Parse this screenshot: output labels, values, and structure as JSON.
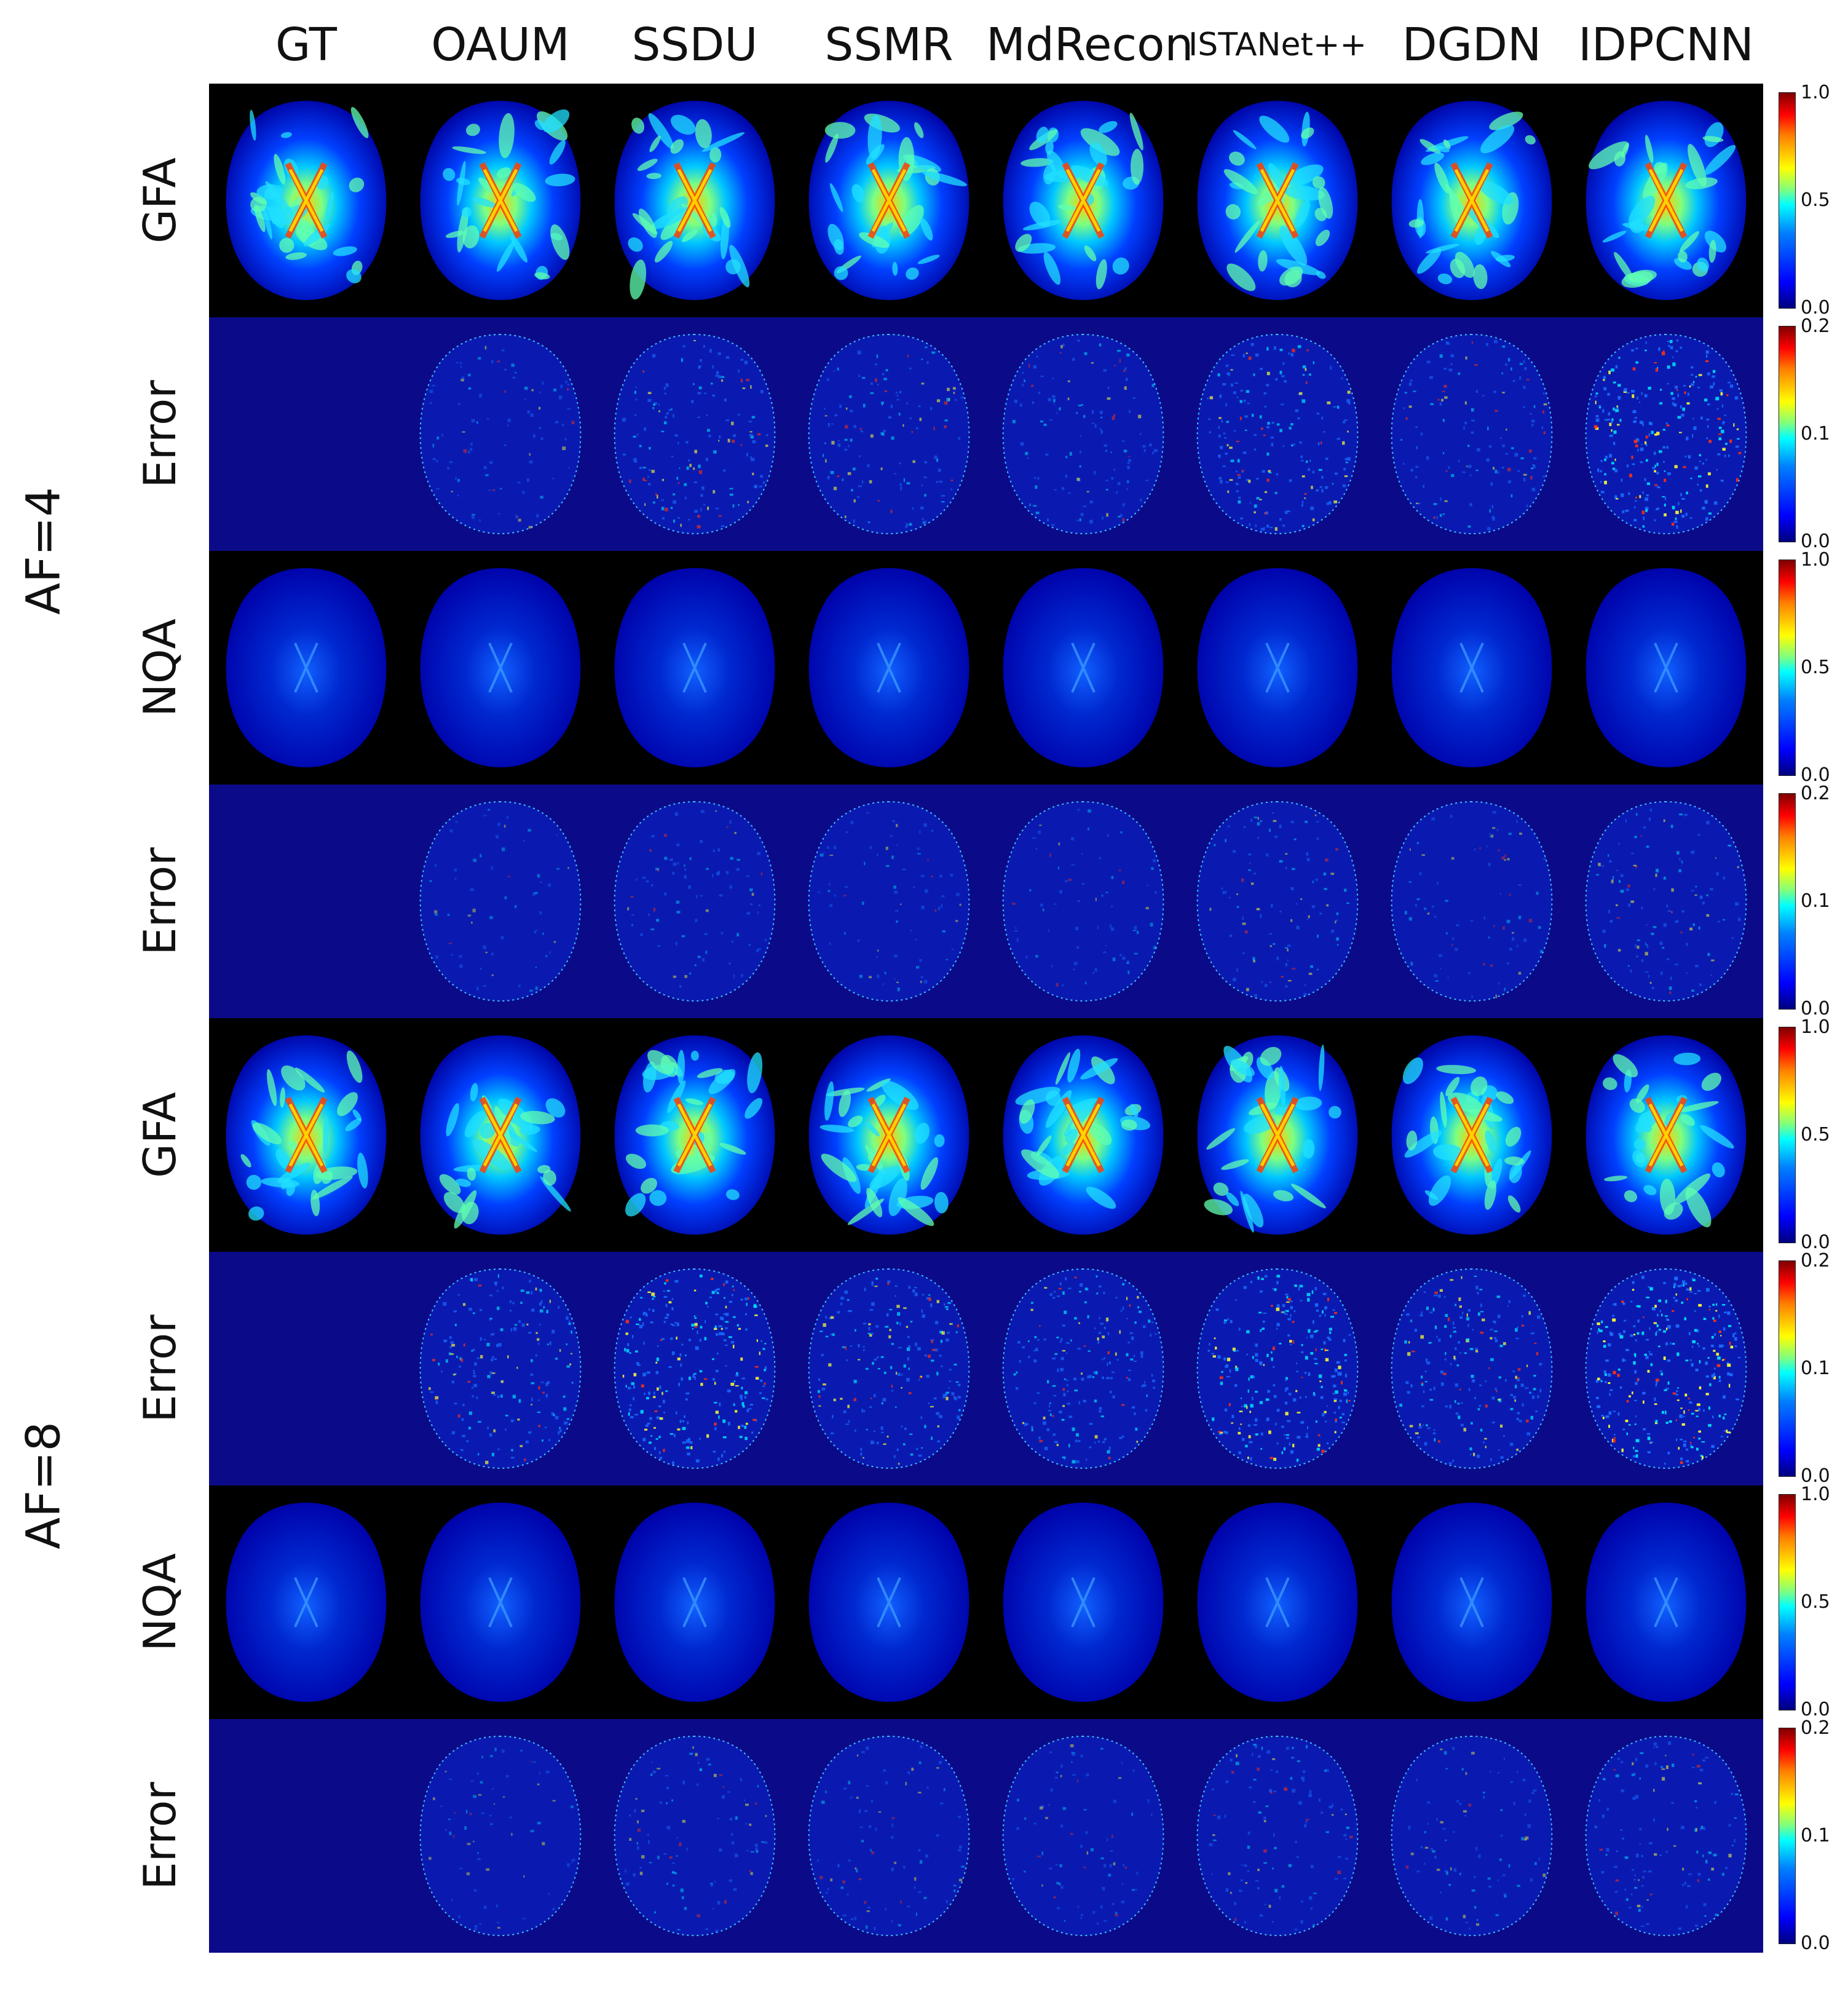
{
  "columns": [
    "GT",
    "OAUM",
    "SSDU",
    "SSMR",
    "MdRecon",
    "ISTANet++",
    "DGDN",
    "IDPCNN"
  ],
  "groups": [
    "AF=4",
    "AF=8"
  ],
  "rows": [
    {
      "label": "GFA",
      "kind": "map",
      "gt_empty": false,
      "errors": [
        0,
        0,
        0,
        0,
        0,
        0,
        0,
        0
      ]
    },
    {
      "label": "Error",
      "kind": "error",
      "gt_empty": true,
      "errors": [
        0,
        0.2,
        0.45,
        0.35,
        0.32,
        0.6,
        0.35,
        0.9
      ]
    },
    {
      "label": "NQA",
      "kind": "nqa",
      "gt_empty": false,
      "errors": [
        0,
        0,
        0,
        0,
        0,
        0,
        0,
        0
      ]
    },
    {
      "label": "Error",
      "kind": "error",
      "gt_empty": true,
      "errors": [
        0,
        0.08,
        0.18,
        0.14,
        0.12,
        0.25,
        0.14,
        0.3
      ]
    },
    {
      "label": "GFA",
      "kind": "map",
      "gt_empty": false,
      "errors": [
        0,
        0,
        0,
        0,
        0,
        0,
        0,
        0
      ]
    },
    {
      "label": "Error",
      "kind": "error",
      "gt_empty": true,
      "errors": [
        0,
        0.55,
        0.85,
        0.6,
        0.6,
        0.85,
        0.62,
        1.0
      ]
    },
    {
      "label": "NQA",
      "kind": "nqa",
      "gt_empty": false,
      "errors": [
        0,
        0,
        0,
        0,
        0,
        0,
        0,
        0
      ]
    },
    {
      "label": "Error",
      "kind": "error",
      "gt_empty": true,
      "errors": [
        0,
        0.1,
        0.22,
        0.17,
        0.15,
        0.28,
        0.17,
        0.32
      ]
    }
  ],
  "colorbars": [
    {
      "max": "1.0",
      "mid": "0.5",
      "min": "0.0"
    },
    {
      "max": "0.2",
      "mid": "0.1",
      "min": "0.0"
    },
    {
      "max": "1.0",
      "mid": "0.5",
      "min": "0.0"
    },
    {
      "max": "0.2",
      "mid": "0.1",
      "min": "0.0"
    },
    {
      "max": "1.0",
      "mid": "0.5",
      "min": "0.0"
    },
    {
      "max": "0.2",
      "mid": "0.1",
      "min": "0.0"
    },
    {
      "max": "1.0",
      "mid": "0.5",
      "min": "0.0"
    },
    {
      "max": "0.2",
      "mid": "0.1",
      "min": "0.0"
    }
  ],
  "colormap": "jet"
}
